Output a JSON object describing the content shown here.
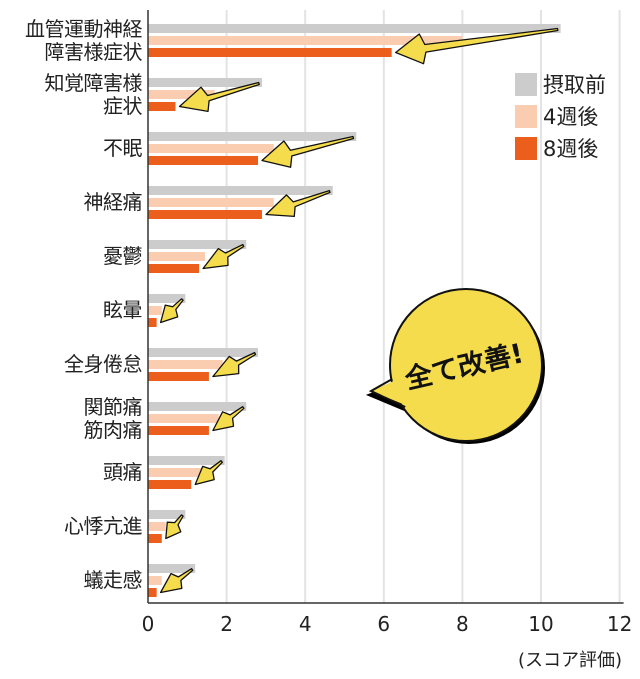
{
  "chart_data": {
    "type": "bar",
    "orientation": "horizontal",
    "title": "",
    "xlabel": "(スコア評価)",
    "ylabel": "",
    "xlim": [
      0,
      12
    ],
    "xticks": [
      0,
      2,
      4,
      6,
      8,
      10,
      12
    ],
    "grid": "vertical",
    "legend_position": "upper-right",
    "categories": [
      "血管運動神経\n障害様症状",
      "知覚障害様\n症状",
      "不眠",
      "神経痛",
      "憂鬱",
      "眩暈",
      "全身倦怠",
      "関節痛\n筋肉痛",
      "頭痛",
      "心悸亢進",
      "蟻走感"
    ],
    "series": [
      {
        "name": "摂取前",
        "color": "#cccccc",
        "values": [
          10.5,
          2.9,
          5.3,
          4.7,
          2.5,
          0.95,
          2.8,
          2.5,
          1.95,
          0.95,
          1.2
        ]
      },
      {
        "name": "4週後",
        "color": "#fbcdb0",
        "values": [
          8.0,
          1.7,
          3.2,
          3.2,
          1.45,
          0.35,
          1.9,
          1.8,
          1.4,
          0.45,
          0.35
        ]
      },
      {
        "name": "8週後",
        "color": "#eb5e1b",
        "values": [
          6.2,
          0.7,
          2.8,
          2.9,
          1.3,
          0.22,
          1.55,
          1.55,
          1.1,
          0.35,
          0.22
        ]
      }
    ],
    "annotations": [
      {
        "type": "speech-bubble",
        "text": "全て改善!",
        "color": "#f5dc4c"
      },
      {
        "type": "arrows",
        "description": "yellow arrows pointing from 摂取前 bar end to 8週後 bar end for each category"
      }
    ]
  },
  "legend": {
    "items": [
      {
        "label": "摂取前",
        "color": "#cccccc"
      },
      {
        "label": "4週後",
        "color": "#fbcdb0"
      },
      {
        "label": "8週後",
        "color": "#eb5e1b"
      }
    ]
  },
  "axis": {
    "ticks": [
      "0",
      "2",
      "4",
      "6",
      "8",
      "10",
      "12"
    ],
    "title": "(スコア評価)"
  },
  "callout": {
    "text": "全て改善!"
  },
  "colors": {
    "before": "#cccccc",
    "week4": "#fbcdb0",
    "week8": "#eb5e1b",
    "arrow": "#f5dc4c",
    "grid": "#e3e3e3"
  }
}
